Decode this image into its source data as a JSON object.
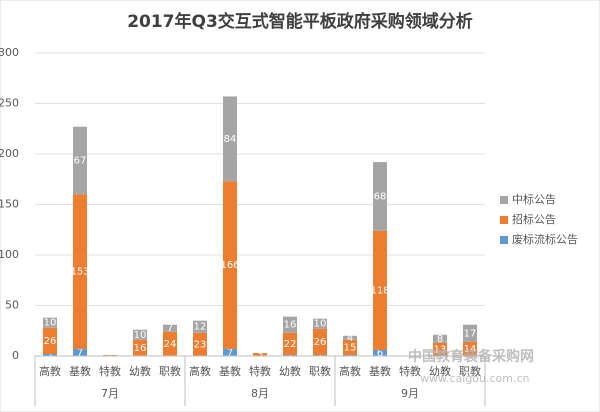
{
  "chart_data": {
    "type": "stacked-bar",
    "title": "2017年Q3交互式智能平板政府采购领域分析",
    "groups": [
      "7月",
      "8月",
      "9月"
    ],
    "categories": [
      "高教",
      "基教",
      "特教",
      "幼教",
      "职教",
      "高教",
      "基教",
      "特教",
      "幼教",
      "职教",
      "高教",
      "基教",
      "特教",
      "幼教",
      "职教"
    ],
    "series": [
      {
        "name": "废标流标公告",
        "color": "#5b9bd5",
        "values": [
          2,
          7,
          null,
          null,
          null,
          null,
          7,
          null,
          1,
          1,
          1,
          6,
          null,
          null,
          null
        ]
      },
      {
        "name": "招标公告",
        "color": "#ed7d31",
        "values": [
          26,
          153,
          1,
          16,
          24,
          23,
          166,
          3,
          22,
          26,
          15,
          118,
          null,
          13,
          14
        ]
      },
      {
        "name": "中标公告",
        "color": "#a5a5a5",
        "values": [
          10,
          67,
          null,
          10,
          7,
          12,
          84,
          null,
          16,
          10,
          4,
          68,
          null,
          8,
          17
        ]
      }
    ],
    "ylim": [
      0,
      300
    ],
    "yticks": [
      0,
      50,
      100,
      150,
      200,
      250,
      300
    ],
    "grid": true,
    "legend": "right",
    "watermark": {
      "text": "中国教育装备采购网",
      "url": "www.caigou.com.cn"
    }
  }
}
